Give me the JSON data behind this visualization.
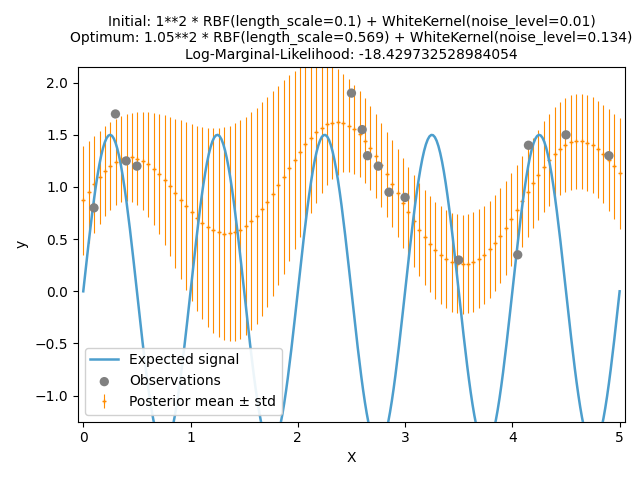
{
  "title_line1": "Initial: 1**2 * RBF(length_scale=0.1) + WhiteKernel(noise_level=0.01)",
  "title_line2": "Optimum: 1.05**2 * RBF(length_scale=0.569) + WhiteKernel(noise_level=0.134)",
  "title_line3": "Log-Marginal-Likelihood: -18.429732528984054",
  "xlabel": "X",
  "ylabel": "y",
  "xlim": [
    -0.05,
    5.05
  ],
  "ylim": [
    -1.25,
    2.15
  ],
  "errorbar_color": "#FF8C00",
  "signal_color": "#4C9ECD",
  "obs_color": "#808080",
  "legend_loc": "lower left",
  "title_fontsize": 10,
  "signal_linewidth": 1.8,
  "n_err_points": 100,
  "n_plot_points": 300,
  "x_range": [
    0,
    5
  ],
  "amplitude": 1.5,
  "frequency": 1.0,
  "obs_x": [
    0.1,
    0.3,
    0.4,
    0.5,
    2.5,
    2.6,
    2.65,
    2.75,
    2.85,
    3.0,
    3.5,
    4.05,
    4.15,
    4.5,
    4.9
  ],
  "obs_y": [
    0.8,
    1.7,
    1.25,
    1.2,
    1.9,
    1.55,
    1.3,
    1.2,
    0.95,
    0.9,
    0.3,
    0.35,
    1.4,
    1.5,
    1.3
  ],
  "random_seed": 0
}
